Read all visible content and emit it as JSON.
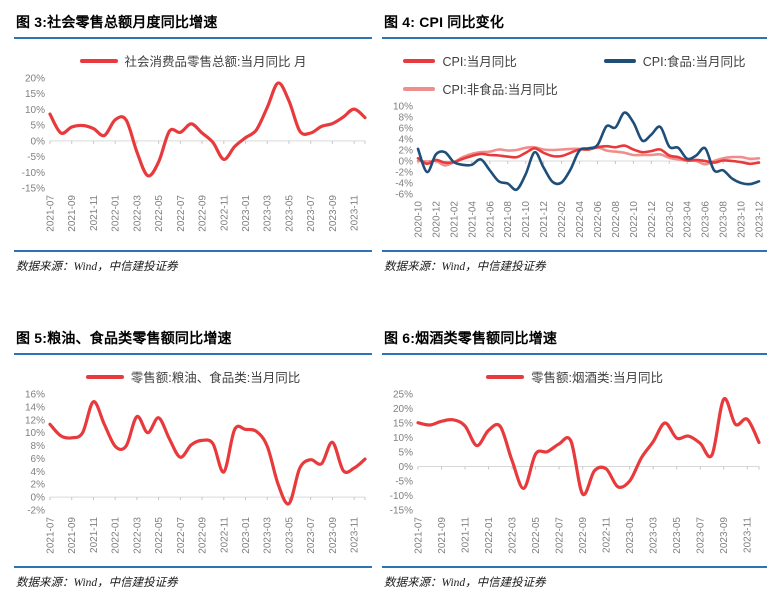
{
  "page": {
    "background": "#FFFFFF"
  },
  "colors": {
    "series_red": "#E83A3C",
    "series_navy": "#1F4E79",
    "series_pink": "#F08E8E",
    "divider_blue": "#2E74B5",
    "axis_label_gray": "#7F7F7F",
    "zero_line_gray": "#D9D9D9"
  },
  "figures": [
    {
      "title": "图 3:社会零售总额月度同比增速",
      "source": "数据来源：Wind，中信建投证券",
      "chart_data": {
        "type": "line",
        "x": [
          "2021-07",
          "2021-08",
          "2021-09",
          "2021-10",
          "2021-11",
          "2021-12",
          "2022-01",
          "2022-02",
          "2022-03",
          "2022-04",
          "2022-05",
          "2022-06",
          "2022-07",
          "2022-08",
          "2022-09",
          "2022-10",
          "2022-11",
          "2022-12",
          "2023-01",
          "2023-02",
          "2023-03",
          "2023-04",
          "2023-05",
          "2023-06",
          "2023-07",
          "2023-08",
          "2023-09",
          "2023-10",
          "2023-11",
          "2023-12"
        ],
        "xtick_every": 2,
        "ylim": [
          -15,
          20
        ],
        "ytick_step": 5,
        "ylabel_format": "percent",
        "grid": "zero-line-only",
        "legend_position": "top-center",
        "line_width": 3.2,
        "series": [
          {
            "name": "社会消费品零售总额:当月同比 月",
            "color": "#E83A3C",
            "values": [
              8.5,
              2.5,
              4.4,
              4.9,
              3.9,
              1.7,
              6.7,
              6.7,
              -3.5,
              -11.1,
              -6.7,
              3.1,
              2.7,
              5.4,
              2.5,
              -0.5,
              -5.9,
              -1.8,
              1.0,
              3.5,
              10.6,
              18.4,
              12.7,
              3.1,
              2.5,
              4.6,
              5.5,
              7.6,
              10.1,
              7.4
            ]
          }
        ]
      }
    },
    {
      "title": "图 4: CPI 同比变化",
      "source": "数据来源：Wind，中信建投证券",
      "chart_data": {
        "type": "line",
        "x": [
          "2020-10",
          "2020-11",
          "2020-12",
          "2021-01",
          "2021-02",
          "2021-03",
          "2021-04",
          "2021-05",
          "2021-06",
          "2021-07",
          "2021-08",
          "2021-09",
          "2021-10",
          "2021-11",
          "2021-12",
          "2022-01",
          "2022-02",
          "2022-03",
          "2022-04",
          "2022-05",
          "2022-06",
          "2022-07",
          "2022-08",
          "2022-09",
          "2022-10",
          "2022-11",
          "2022-12",
          "2023-01",
          "2023-02",
          "2023-03",
          "2023-04",
          "2023-05",
          "2023-06",
          "2023-07",
          "2023-08",
          "2023-09",
          "2023-10",
          "2023-11",
          "2023-12"
        ],
        "xtick_every": 2,
        "ylim": [
          -6,
          10
        ],
        "ytick_step": 2,
        "ylabel_format": "percent",
        "grid": "zero-line-only",
        "legend_position": "top-two-column",
        "line_width": 2.6,
        "draw_order": [
          2,
          0,
          1
        ],
        "series": [
          {
            "name": "CPI:当月同比",
            "color": "#E83A3C",
            "values": [
              0.5,
              -0.5,
              0.2,
              -0.3,
              -0.2,
              0.4,
              0.9,
              1.3,
              1.1,
              1.0,
              0.8,
              0.7,
              1.5,
              2.3,
              1.5,
              0.9,
              0.9,
              1.5,
              2.1,
              2.1,
              2.5,
              2.7,
              2.5,
              2.8,
              2.1,
              1.6,
              1.8,
              2.1,
              1.0,
              0.7,
              0.1,
              0.2,
              0.0,
              -0.3,
              0.1,
              0.0,
              -0.2,
              -0.5,
              -0.3
            ]
          },
          {
            "name": "CPI:食品:当月同比",
            "color": "#1F4E79",
            "values": [
              2.2,
              -2.0,
              1.2,
              1.6,
              -0.2,
              -0.7,
              -0.7,
              0.3,
              -1.7,
              -3.7,
              -4.1,
              -5.2,
              -2.4,
              1.6,
              -1.2,
              -3.8,
              -3.9,
              -1.5,
              1.9,
              2.3,
              2.9,
              6.3,
              6.1,
              8.8,
              7.0,
              3.7,
              4.8,
              6.2,
              2.6,
              2.4,
              0.4,
              1.0,
              2.3,
              -1.7,
              -1.7,
              -3.2,
              -4.0,
              -4.2,
              -3.7
            ]
          },
          {
            "name": "CPI:非食品:当月同比",
            "color": "#F08E8E",
            "values": [
              0.0,
              -0.1,
              0.0,
              -0.8,
              -0.2,
              0.7,
              1.3,
              1.6,
              1.7,
              2.1,
              1.9,
              2.0,
              2.4,
              2.5,
              2.1,
              2.0,
              2.1,
              2.2,
              2.2,
              2.1,
              2.5,
              1.9,
              1.7,
              1.5,
              1.1,
              1.1,
              1.1,
              1.2,
              0.6,
              0.3,
              0.1,
              0.0,
              -0.6,
              0.0,
              0.5,
              0.7,
              0.7,
              0.4,
              0.5
            ]
          }
        ]
      }
    },
    {
      "title": "图 5:粮油、食品类零售额同比增速",
      "source": "数据来源：Wind，中信建投证券",
      "chart_data": {
        "type": "line",
        "x": [
          "2021-07",
          "2021-08",
          "2021-09",
          "2021-10",
          "2021-11",
          "2021-12",
          "2022-01",
          "2022-02",
          "2022-03",
          "2022-04",
          "2022-05",
          "2022-06",
          "2022-07",
          "2022-08",
          "2022-09",
          "2022-10",
          "2022-11",
          "2022-12",
          "2023-01",
          "2023-02",
          "2023-03",
          "2023-04",
          "2023-05",
          "2023-06",
          "2023-07",
          "2023-08",
          "2023-09",
          "2023-10",
          "2023-11",
          "2023-12"
        ],
        "xtick_every": 2,
        "ylim": [
          -2,
          16
        ],
        "ytick_step": 2,
        "ylabel_format": "percent",
        "grid": "zero-line-only",
        "legend_position": "top-center",
        "line_width": 3.2,
        "series": [
          {
            "name": "零售额:粮油、食品类:当月同比",
            "color": "#E83A3C",
            "values": [
              11.3,
              9.5,
              9.2,
              10.0,
              14.8,
              11.3,
              7.9,
              7.9,
              12.5,
              10.0,
              12.3,
              9.0,
              6.2,
              8.1,
              8.8,
              8.3,
              3.9,
              10.5,
              10.5,
              10.2,
              7.9,
              2.0,
              -1.0,
              4.5,
              5.8,
              5.2,
              8.5,
              4.1,
              4.5,
              5.9
            ]
          }
        ]
      }
    },
    {
      "title": "图 6:烟酒类零售额同比增速",
      "source": "数据来源：Wind，中信建投证券",
      "chart_data": {
        "type": "line",
        "x": [
          "2021-07",
          "2021-08",
          "2021-09",
          "2021-10",
          "2021-11",
          "2021-12",
          "2022-01",
          "2022-02",
          "2022-03",
          "2022-04",
          "2022-05",
          "2022-06",
          "2022-07",
          "2022-08",
          "2022-09",
          "2022-10",
          "2022-11",
          "2022-12",
          "2023-01",
          "2023-02",
          "2023-03",
          "2023-04",
          "2023-05",
          "2023-06",
          "2023-07",
          "2023-08",
          "2023-09",
          "2023-10",
          "2023-11",
          "2023-12"
        ],
        "xtick_every": 2,
        "ylim": [
          -15,
          25
        ],
        "ytick_step": 5,
        "ylabel_format": "percent",
        "grid": "zero-line-only",
        "legend_position": "top-center",
        "line_width": 3.2,
        "series": [
          {
            "name": "零售额:烟酒类:当月同比",
            "color": "#E83A3C",
            "values": [
              15.1,
              14.3,
              15.6,
              16.1,
              14.0,
              7.2,
              12.5,
              13.8,
              2.0,
              -7.5,
              4.3,
              5.1,
              7.8,
              8.8,
              -9.5,
              -1.5,
              -0.8,
              -7.0,
              -5.0,
              3.0,
              8.6,
              15.0,
              9.8,
              10.5,
              8.0,
              4.0,
              23.2,
              14.5,
              16.3,
              8.3
            ]
          }
        ]
      }
    }
  ]
}
